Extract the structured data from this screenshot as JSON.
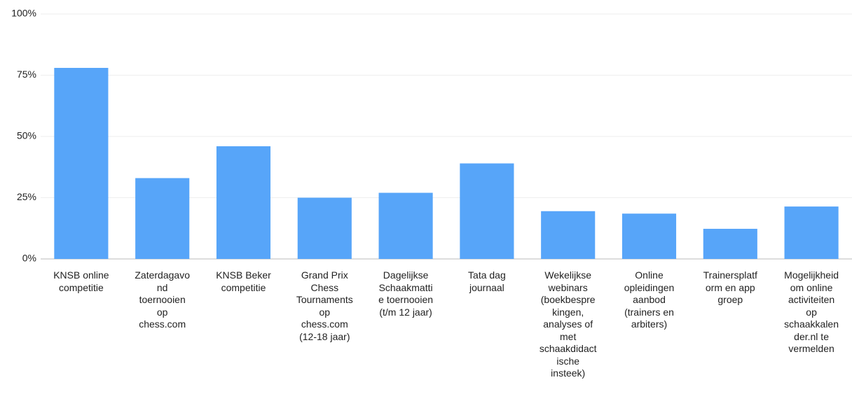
{
  "chart_data": {
    "type": "bar",
    "categories": [
      "KNSB online competitie",
      "Zaterdagavond toernooien op chess.com",
      "KNSB Beker competitie",
      "Grand Prix Chess Tournaments op chess.com (12-18 jaar)",
      "Dagelijkse Schaakmattie toernooien (t/m 12 jaar)",
      "Tata dag journaal",
      "Wekelijkse webinars (boekbesprekingen, analyses of met schaakdidactische insteek)",
      "Online opleidingen aanbod (trainers en arbiters)",
      "Trainersplatform en app groep",
      "Mogelijkheid om online activiteiten op schaakkalender.nl te vermelden"
    ],
    "values": [
      78,
      33,
      46,
      25,
      27,
      39,
      19.5,
      18.5,
      12.3,
      21.4
    ],
    "color": "#57a5f9",
    "ylim": [
      0,
      100
    ],
    "yticks": [
      {
        "value": 0,
        "label": "0%"
      },
      {
        "value": 25,
        "label": "25%"
      },
      {
        "value": 50,
        "label": "50%"
      },
      {
        "value": 75,
        "label": "75%"
      },
      {
        "value": 100,
        "label": "100%"
      }
    ],
    "grid": true
  }
}
